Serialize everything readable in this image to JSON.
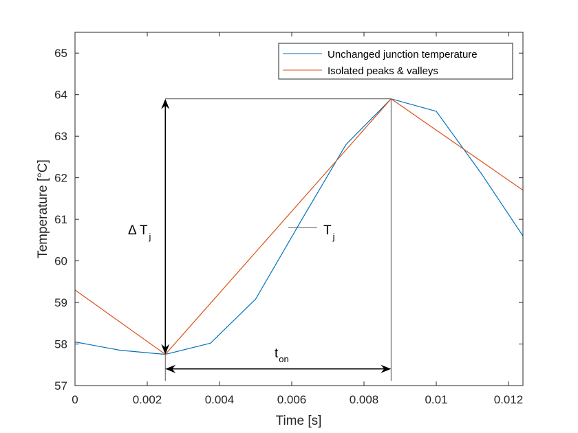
{
  "chart_data": {
    "type": "line",
    "xlabel": "Time [s]",
    "ylabel": "Temperature [°C]",
    "xlim": [
      0,
      0.0124
    ],
    "ylim": [
      57,
      65.5
    ],
    "xticks": [
      0,
      0.002,
      0.004,
      0.006,
      0.008,
      0.01,
      0.012
    ],
    "xtick_labels": [
      "0",
      "0.002",
      "0.004",
      "0.006",
      "0.008",
      "0.01",
      "0.012"
    ],
    "yticks": [
      57,
      58,
      59,
      60,
      61,
      62,
      63,
      64,
      65
    ],
    "ytick_labels": [
      "57",
      "58",
      "59",
      "60",
      "61",
      "62",
      "63",
      "64",
      "65"
    ],
    "grid": false,
    "legend_position": "top-right",
    "series": [
      {
        "name": "Unchanged junction temperature",
        "color": "#0072BD",
        "x": [
          0,
          0.00125,
          0.0025,
          0.00375,
          0.005,
          0.00625,
          0.0075,
          0.00875,
          0.01,
          0.01125,
          0.0124
        ],
        "y": [
          58.05,
          57.85,
          57.75,
          58.02,
          59.08,
          60.95,
          62.8,
          63.9,
          63.6,
          62.1,
          60.6
        ]
      },
      {
        "name": "Isolated peaks & valleys",
        "color": "#D95319",
        "x": [
          0,
          0.0025,
          0.00875,
          0.0124
        ],
        "y": [
          59.3,
          57.75,
          63.9,
          61.7
        ]
      }
    ],
    "annotations": {
      "delta_main": "Δ T",
      "delta_sub": "j",
      "tj_main": "T",
      "tj_sub": "j",
      "ton_main": "t",
      "ton_sub": "on",
      "delta_x": 0.0025,
      "delta_y_from": 57.75,
      "delta_y_to": 63.9,
      "ton_y": 57.4,
      "ton_x_from": 0.0025,
      "ton_x_to": 0.00875,
      "tj_marker_x": [
        0.0059,
        0.0067
      ],
      "tj_marker_y": 60.8
    }
  }
}
